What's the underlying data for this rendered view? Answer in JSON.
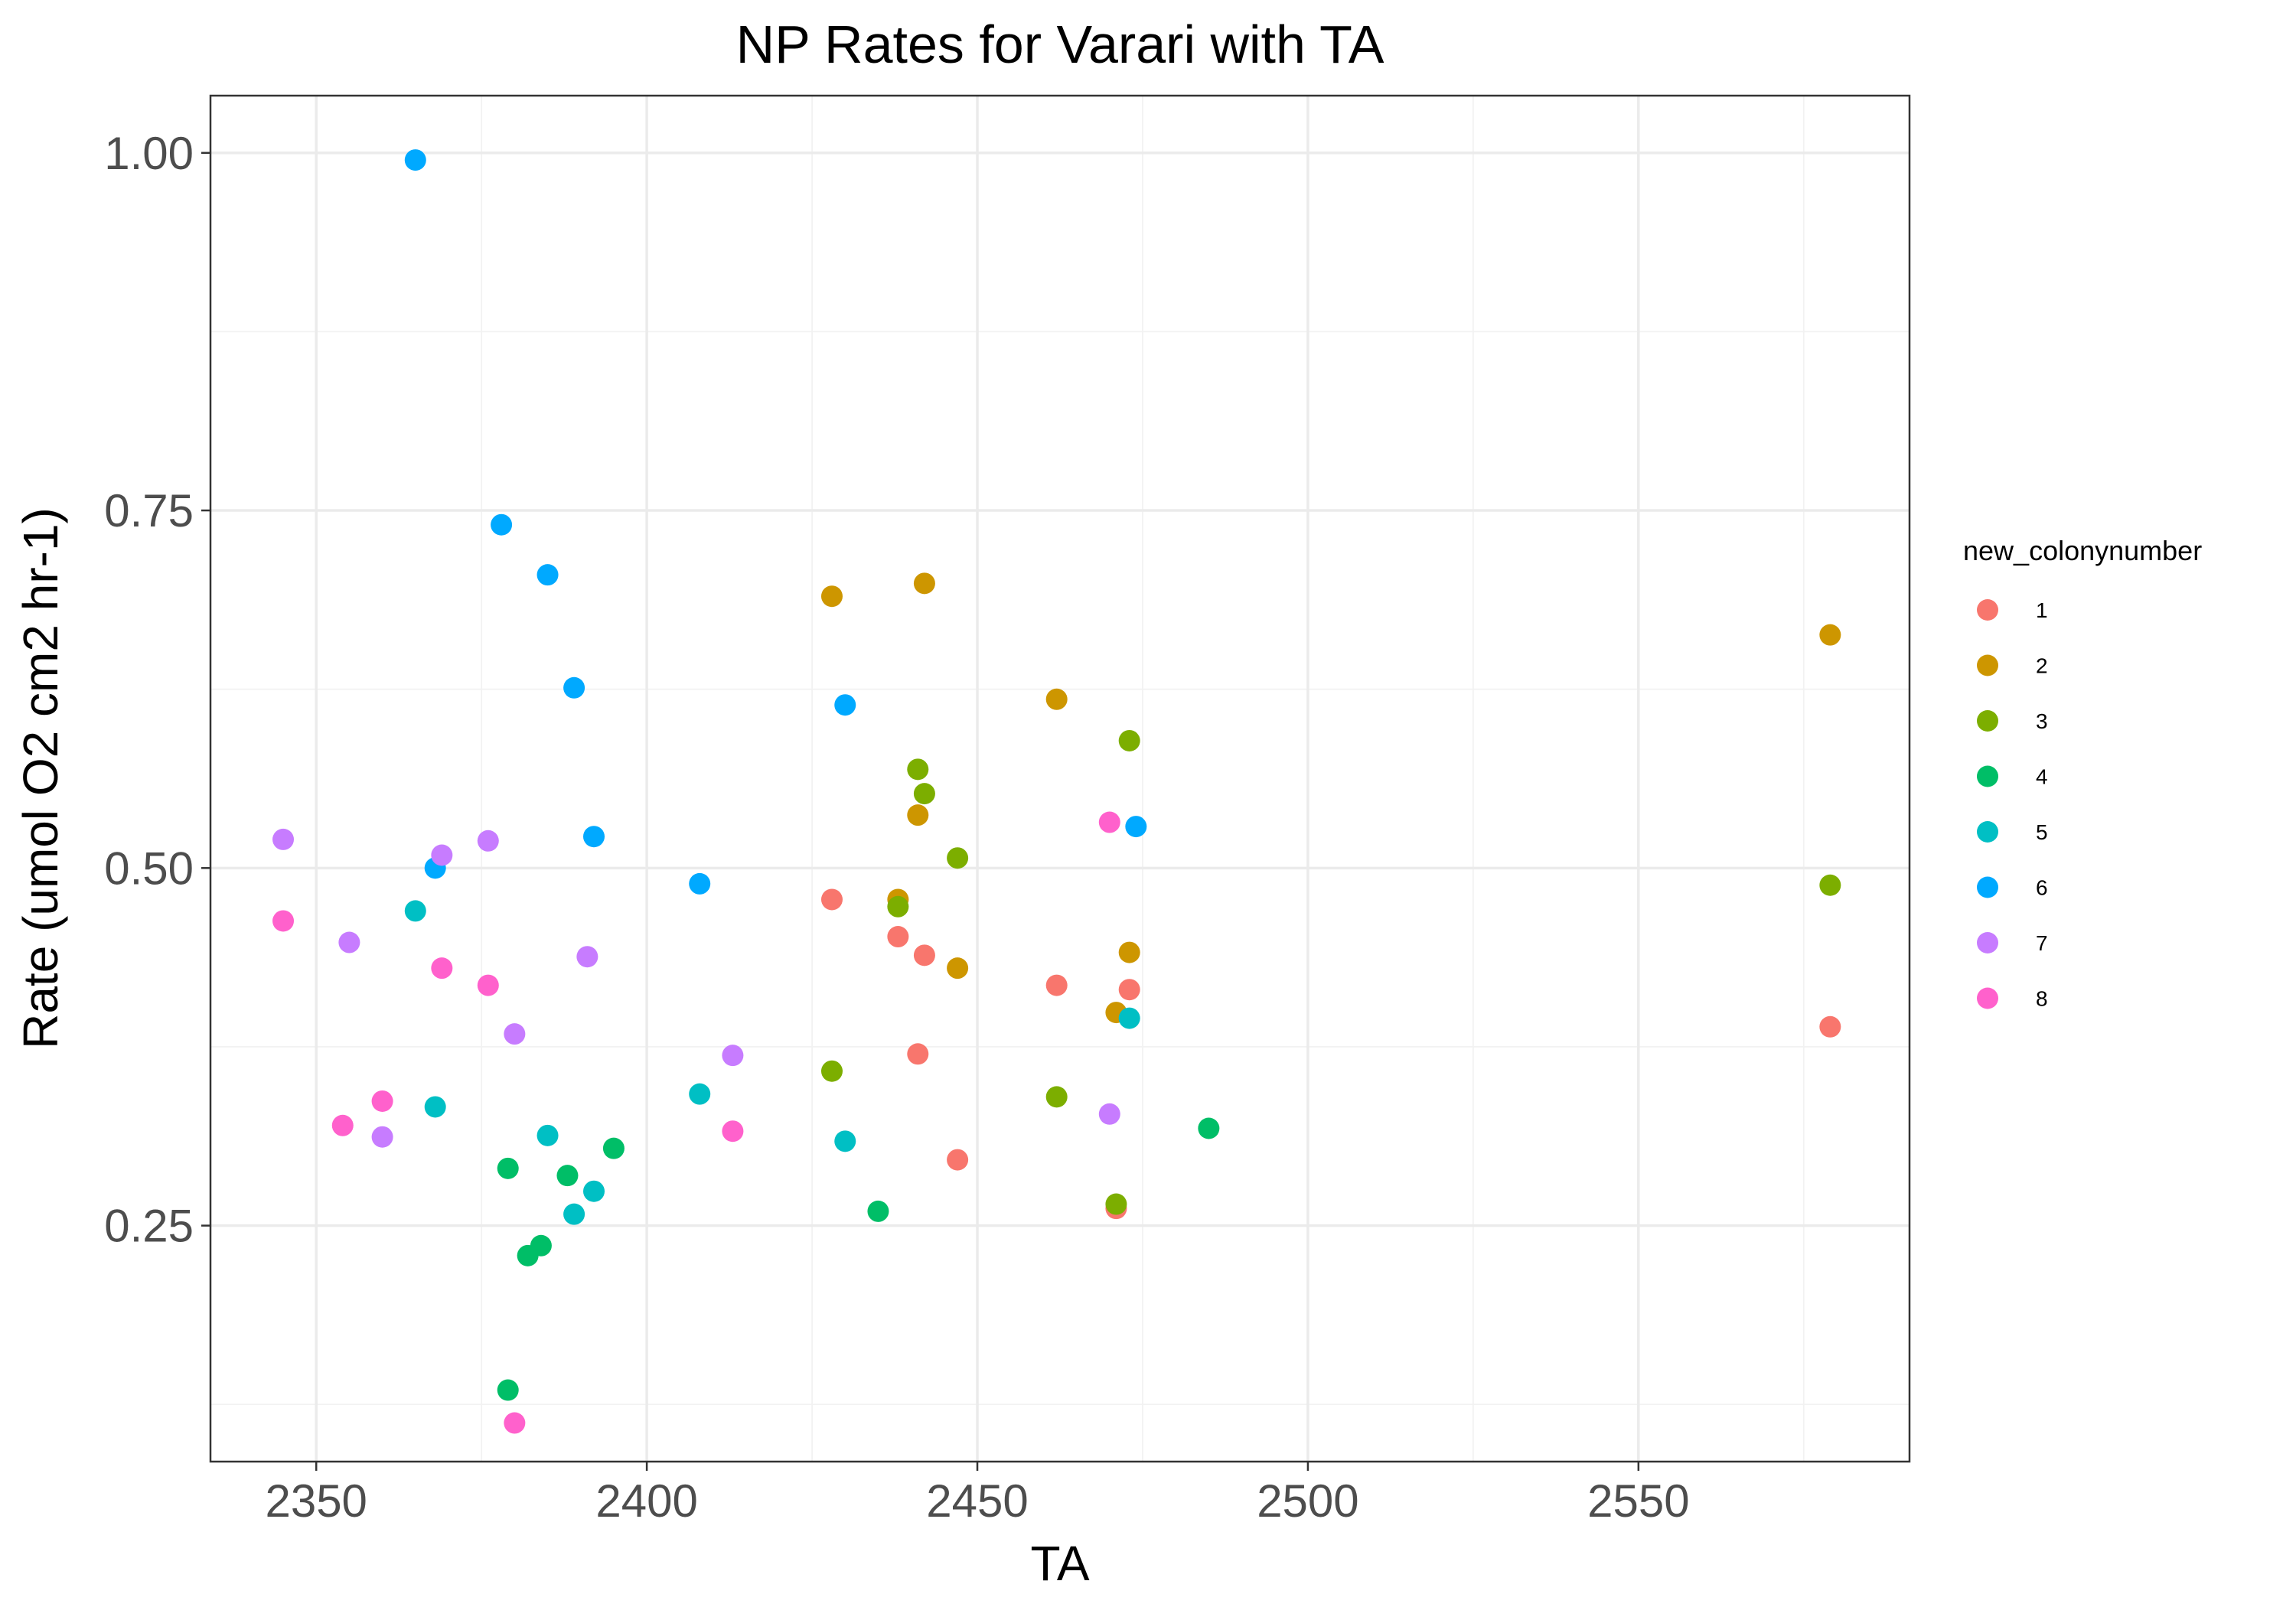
{
  "chart_data": {
    "type": "scatter",
    "title": "NP Rates for Varari with TA",
    "xlabel": "TA",
    "ylabel": "Rate (umol O2 cm2 hr-1)",
    "xlim": [
      2334,
      2591
    ],
    "ylim": [
      0.085,
      1.04
    ],
    "x_ticks": [
      2350,
      2400,
      2450,
      2500,
      2550
    ],
    "x_tick_labels": [
      "2350",
      "2400",
      "2450",
      "2500",
      "2550"
    ],
    "x_minor_ticks": [
      2375,
      2425,
      2475,
      2525,
      2575
    ],
    "y_ticks": [
      0.25,
      0.5,
      0.75,
      1.0
    ],
    "y_tick_labels": [
      "0.25",
      "0.50",
      "0.75",
      "1.00"
    ],
    "y_minor_ticks": [
      0.125,
      0.375,
      0.625,
      0.875
    ],
    "grid": true,
    "legend": {
      "title": "new_colonynumber",
      "position": "right"
    },
    "series": [
      {
        "name": "1",
        "color": "#F8766D",
        "points": [
          [
            2428,
            0.478
          ],
          [
            2438,
            0.452
          ],
          [
            2441,
            0.37
          ],
          [
            2442,
            0.439
          ],
          [
            2447,
            0.296
          ],
          [
            2462,
            0.418
          ],
          [
            2471,
            0.262
          ],
          [
            2473,
            0.415
          ],
          [
            2579,
            0.389
          ]
        ]
      },
      {
        "name": "2",
        "color": "#CD9600",
        "points": [
          [
            2428,
            0.69
          ],
          [
            2438,
            0.478
          ],
          [
            2441,
            0.537
          ],
          [
            2442,
            0.699
          ],
          [
            2447,
            0.43
          ],
          [
            2462,
            0.618
          ],
          [
            2471,
            0.399
          ],
          [
            2473,
            0.441
          ],
          [
            2579,
            0.663
          ]
        ]
      },
      {
        "name": "3",
        "color": "#7CAE00",
        "points": [
          [
            2428,
            0.358
          ],
          [
            2438,
            0.473
          ],
          [
            2441,
            0.569
          ],
          [
            2442,
            0.552
          ],
          [
            2447,
            0.507
          ],
          [
            2462,
            0.34
          ],
          [
            2471,
            0.265
          ],
          [
            2473,
            0.589
          ],
          [
            2579,
            0.488
          ]
        ]
      },
      {
        "name": "4",
        "color": "#00BE67",
        "points": [
          [
            2379,
            0.135
          ],
          [
            2379,
            0.29
          ],
          [
            2382,
            0.229
          ],
          [
            2384,
            0.236
          ],
          [
            2388,
            0.285
          ],
          [
            2395,
            0.304
          ],
          [
            2435,
            0.26
          ],
          [
            2485,
            0.318
          ]
        ]
      },
      {
        "name": "5",
        "color": "#00BFC4",
        "points": [
          [
            2365,
            0.47
          ],
          [
            2368,
            0.333
          ],
          [
            2385,
            0.313
          ],
          [
            2389,
            0.258
          ],
          [
            2392,
            0.274
          ],
          [
            2408,
            0.342
          ],
          [
            2430,
            0.309
          ],
          [
            2473,
            0.395
          ]
        ]
      },
      {
        "name": "6",
        "color": "#00A9FF",
        "points": [
          [
            2365,
            0.995
          ],
          [
            2368,
            0.5
          ],
          [
            2378,
            0.74
          ],
          [
            2385,
            0.705
          ],
          [
            2389,
            0.626
          ],
          [
            2392,
            0.522
          ],
          [
            2408,
            0.489
          ],
          [
            2430,
            0.614
          ],
          [
            2474,
            0.529
          ]
        ]
      },
      {
        "name": "7",
        "color": "#C77CFF",
        "points": [
          [
            2345,
            0.52
          ],
          [
            2355,
            0.448
          ],
          [
            2360,
            0.312
          ],
          [
            2369,
            0.509
          ],
          [
            2376,
            0.519
          ],
          [
            2380,
            0.384
          ],
          [
            2391,
            0.438
          ],
          [
            2413,
            0.369
          ],
          [
            2470,
            0.328
          ]
        ]
      },
      {
        "name": "8",
        "color": "#FF61CC",
        "points": [
          [
            2345,
            0.463
          ],
          [
            2354,
            0.32
          ],
          [
            2360,
            0.337
          ],
          [
            2369,
            0.43
          ],
          [
            2376,
            0.418
          ],
          [
            2380,
            0.112
          ],
          [
            2413,
            0.316
          ],
          [
            2470,
            0.532
          ]
        ]
      }
    ]
  }
}
